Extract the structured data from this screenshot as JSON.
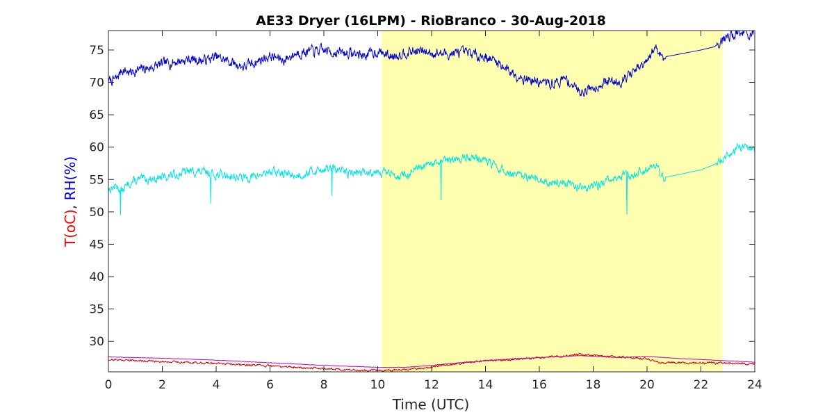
{
  "chart_data": {
    "type": "line",
    "title": "AE33 Dryer (16LPM)  - RioBranco - 30-Aug-2018",
    "xlabel": "Time (UTC)",
    "ylabel_parts": [
      {
        "text": "T(oC)",
        "color": "#ff0000"
      },
      {
        "text": ", ",
        "color": "#262626"
      },
      {
        "text": "RH(%)",
        "color": "#0000ff"
      }
    ],
    "xlim": [
      0,
      24
    ],
    "ylim": [
      25.3,
      78
    ],
    "xticks": [
      0,
      2,
      4,
      6,
      8,
      10,
      12,
      14,
      16,
      18,
      20,
      22,
      24
    ],
    "yticks": [
      30,
      35,
      40,
      45,
      50,
      55,
      60,
      65,
      70,
      75
    ],
    "grid": false,
    "highlight": {
      "x_start": 10.15,
      "x_end": 22.8,
      "color": "#ffffb0"
    },
    "series": [
      {
        "color": "#0000cc",
        "x": [
          0,
          0.3,
          0.5,
          0.8,
          1,
          1.5,
          2,
          2.5,
          3,
          3.5,
          4,
          4.5,
          5,
          5.5,
          6,
          6.5,
          7,
          7.5,
          8,
          8.5,
          9,
          9.5,
          10,
          10.5,
          11,
          11.5,
          12,
          12.5,
          13,
          13.5,
          14,
          14.5,
          15,
          15.5,
          16,
          16.5,
          17,
          17.5,
          18,
          18.5,
          19,
          19.5,
          20,
          20.3,
          20.6,
          21,
          22,
          22.5,
          23,
          23.5,
          24
        ],
        "y": [
          70.2,
          70.5,
          72,
          71.5,
          71.8,
          72.2,
          72.8,
          73.2,
          73.6,
          73.4,
          73.9,
          73.2,
          72.4,
          73.2,
          74.1,
          73.4,
          74.6,
          74.8,
          74.9,
          74.6,
          74.5,
          74.2,
          74.8,
          74.0,
          74.7,
          74.8,
          74.6,
          74.4,
          74.5,
          74.4,
          74.0,
          73.0,
          71.5,
          70.6,
          70.0,
          69.8,
          70.5,
          68.6,
          69.2,
          70.1,
          70.2,
          71.6,
          73.0,
          75.5,
          73.9,
          74.2,
          75.0,
          75.5,
          77.2,
          77.8,
          77.2
        ],
        "noise": 0.65,
        "seed": 7
      },
      {
        "color": "#00e5e5",
        "x": [
          0,
          0.3,
          0.5,
          0.8,
          1,
          1.5,
          2,
          2.5,
          3,
          3.5,
          4,
          4.5,
          5,
          5.5,
          6,
          6.5,
          7,
          7.5,
          8,
          8.5,
          9,
          9.5,
          10,
          10.5,
          11,
          11.5,
          12,
          12.5,
          13,
          13.5,
          14,
          14.5,
          15,
          15.5,
          16,
          16.5,
          17,
          17.5,
          18,
          18.5,
          19,
          19.5,
          20,
          20.3,
          20.6,
          21,
          22,
          22.5,
          23,
          23.5,
          24
        ],
        "y": [
          53.5,
          54,
          53.2,
          54.5,
          54.8,
          55.1,
          55.3,
          55.8,
          56.3,
          56.1,
          55.8,
          55.6,
          55.2,
          55.5,
          56.3,
          55.9,
          55.6,
          56.2,
          56.7,
          56.5,
          56.0,
          56.1,
          56.4,
          55.8,
          55.6,
          56.5,
          57.3,
          57.8,
          58.2,
          58.5,
          58.0,
          56.6,
          55.8,
          55.2,
          54.8,
          54.6,
          54.5,
          53.8,
          53.9,
          54.7,
          55.4,
          55.9,
          56.8,
          57.5,
          55.3,
          55.6,
          56.5,
          57.3,
          58.8,
          60.2,
          59.8
        ],
        "noise": 0.55,
        "seed": 13,
        "spikes": [
          [
            0.45,
            49.5
          ],
          [
            3.8,
            51.3
          ],
          [
            8.3,
            52.5
          ],
          [
            12.35,
            51.8
          ],
          [
            19.25,
            49.6
          ]
        ]
      },
      {
        "color": "#cc0000",
        "x": [
          0,
          2,
          4,
          6,
          8,
          9,
          10,
          11,
          12,
          13,
          14,
          15,
          16,
          17,
          17.5,
          18,
          19,
          20,
          20.5,
          21,
          22,
          23,
          24
        ],
        "y": [
          27.2,
          26.9,
          26.6,
          26.2,
          25.8,
          25.6,
          25.5,
          25.6,
          26.0,
          26.6,
          27.0,
          27.2,
          27.5,
          27.8,
          28.0,
          27.8,
          27.6,
          27.3,
          26.7,
          26.7,
          26.7,
          26.6,
          26.5
        ],
        "noise": 0.12,
        "seed": 21
      },
      {
        "color": "#c000c0",
        "x": [
          0,
          2,
          4,
          6,
          8,
          10,
          11,
          12,
          13,
          14,
          15,
          16,
          17,
          17.5,
          18,
          19,
          20,
          21,
          22,
          23,
          24
        ],
        "y": [
          27.6,
          27.4,
          27.1,
          26.7,
          26.3,
          26.0,
          26.0,
          26.3,
          26.7,
          27.0,
          27.3,
          27.5,
          27.7,
          27.8,
          27.7,
          27.5,
          27.7,
          27.4,
          27.2,
          27.0,
          26.8
        ],
        "noise": 0.02,
        "seed": 3
      }
    ]
  }
}
